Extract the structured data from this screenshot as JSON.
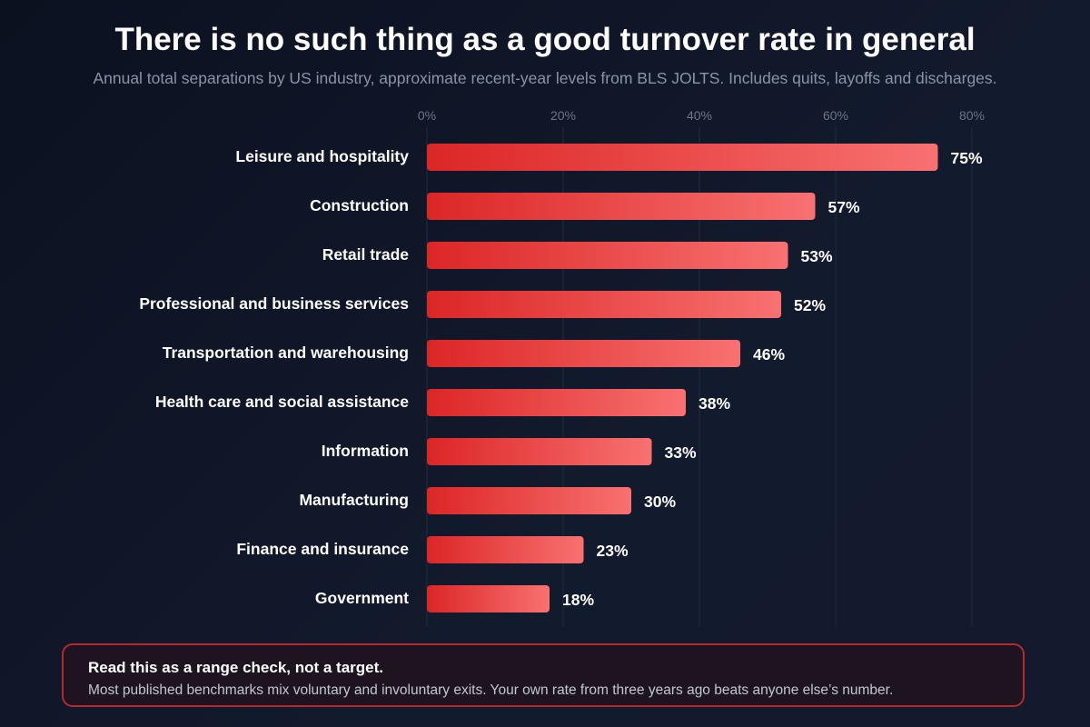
{
  "header": {
    "title": "There is no such thing as a good turnover rate in general",
    "subtitle": "Annual total separations by US industry, approximate recent-year levels from BLS JOLTS. Includes quits, layoffs and discharges."
  },
  "chart_data": {
    "type": "bar",
    "orientation": "horizontal",
    "title": "There is no such thing as a good turnover rate in general",
    "subtitle": "Annual total separations by US industry, approximate recent-year levels from BLS JOLTS. Includes quits, layoffs and discharges.",
    "categories": [
      "Leisure and hospitality",
      "Construction",
      "Retail trade",
      "Professional and business services",
      "Transportation and warehousing",
      "Health care and social assistance",
      "Information",
      "Manufacturing",
      "Finance and insurance",
      "Government"
    ],
    "values": [
      75,
      57,
      53,
      52,
      46,
      38,
      33,
      30,
      23,
      18
    ],
    "value_labels": [
      "75%",
      "57%",
      "53%",
      "52%",
      "46%",
      "38%",
      "33%",
      "30%",
      "23%",
      "18%"
    ],
    "xlim": [
      0,
      80
    ],
    "x_ticks": [
      "0%",
      "20%",
      "40%",
      "60%",
      "80%"
    ],
    "x_axis_position": "top",
    "grid": true,
    "bar_colors": {
      "start": "#dc2626",
      "end": "#f87171"
    }
  },
  "callout": {
    "title": "Read this as a range check, not a target.",
    "body": "Most published benchmarks mix voluntary and involuntary exits. Your own rate from three years ago beats anyone else’s number."
  },
  "colors": {
    "background": "#0f1526",
    "accent": "#dc2626",
    "callout_border": "#b02a2e"
  }
}
